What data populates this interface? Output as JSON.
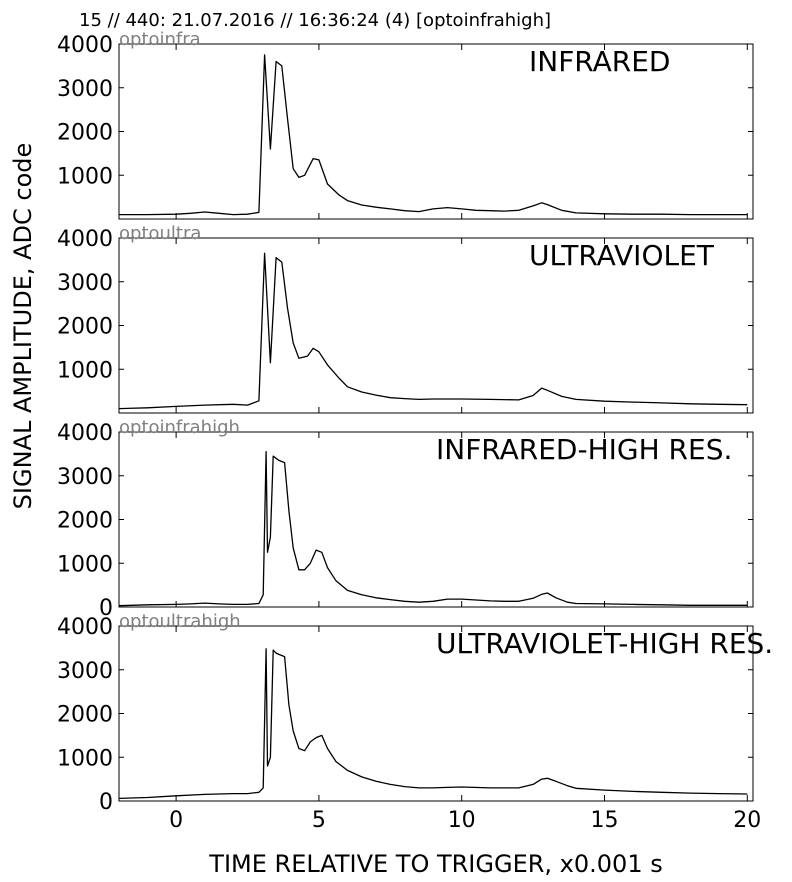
{
  "figure": {
    "title": "15 // 440:   21.07.2016 // 16:36:24 (4)  [optoinfrahigh]",
    "ylabel": "SIGNAL AMPLITUDE,  ADC code",
    "xlabel": "TIME RELATIVE TO TRIGGER,   x0.001 s"
  },
  "chart_data": [
    {
      "type": "line",
      "channel": "optoinfra",
      "label": "INFRARED",
      "xlim": [
        -2,
        20.2
      ],
      "ylim": [
        0,
        4000
      ],
      "yticks": [
        1000,
        2000,
        3000,
        4000
      ],
      "x": [
        -2,
        -1,
        0,
        0.5,
        1,
        1.5,
        2,
        2.5,
        2.9,
        3.1,
        3.3,
        3.5,
        3.7,
        3.9,
        4.1,
        4.3,
        4.5,
        4.8,
        5,
        5.3,
        5.7,
        6,
        6.5,
        7,
        7.5,
        8,
        8.5,
        9,
        9.5,
        10,
        10.5,
        11,
        11.5,
        12,
        12.5,
        12.8,
        13,
        13.5,
        14,
        15,
        16,
        17,
        18,
        19,
        20
      ],
      "values": [
        100,
        100,
        110,
        130,
        160,
        130,
        100,
        110,
        150,
        3750,
        1600,
        3600,
        3500,
        2300,
        1150,
        950,
        1000,
        1380,
        1350,
        800,
        550,
        420,
        320,
        270,
        230,
        190,
        170,
        230,
        260,
        230,
        200,
        190,
        180,
        200,
        300,
        370,
        330,
        200,
        140,
        120,
        110,
        110,
        100,
        100,
        100
      ],
      "color": "#000000"
    },
    {
      "type": "line",
      "channel": "optoultra",
      "label": "ULTRAVIOLET",
      "xlim": [
        -2,
        20.2
      ],
      "ylim": [
        0,
        4000
      ],
      "yticks": [
        1000,
        2000,
        3000,
        4000
      ],
      "x": [
        -2,
        -1,
        0,
        1,
        2,
        2.5,
        2.9,
        3.1,
        3.3,
        3.5,
        3.7,
        3.9,
        4.1,
        4.3,
        4.6,
        4.8,
        5,
        5.3,
        5.7,
        6,
        6.5,
        7,
        7.5,
        8,
        8.5,
        9,
        10,
        11,
        12,
        12.5,
        12.8,
        13,
        13.5,
        14,
        15,
        16,
        17,
        18,
        19,
        20
      ],
      "values": [
        100,
        120,
        150,
        180,
        200,
        180,
        280,
        3650,
        1150,
        3550,
        3450,
        2400,
        1600,
        1250,
        1300,
        1480,
        1400,
        1100,
        800,
        600,
        480,
        410,
        350,
        330,
        310,
        320,
        320,
        310,
        300,
        400,
        570,
        520,
        380,
        310,
        270,
        250,
        230,
        210,
        200,
        190
      ],
      "color": "#000000"
    },
    {
      "type": "line",
      "channel": "optoinfrahigh",
      "label": "INFRARED-HIGH RES.",
      "xlim": [
        -2,
        20.2
      ],
      "ylim": [
        0,
        4000
      ],
      "yticks": [
        0,
        1000,
        2000,
        3000,
        4000
      ],
      "x": [
        -2,
        -1,
        0,
        0.5,
        1,
        1.5,
        2,
        2.5,
        2.9,
        3.05,
        3.15,
        3.2,
        3.3,
        3.4,
        3.5,
        3.6,
        3.8,
        3.95,
        4.1,
        4.3,
        4.5,
        4.7,
        4.9,
        5.1,
        5.3,
        5.6,
        6,
        6.5,
        7,
        7.5,
        8,
        8.5,
        9,
        9.5,
        10,
        10.5,
        11,
        11.5,
        12,
        12.5,
        12.8,
        13,
        13.3,
        13.7,
        14,
        15,
        16,
        17,
        18,
        19,
        20
      ],
      "values": [
        30,
        50,
        60,
        70,
        90,
        70,
        60,
        60,
        80,
        280,
        3550,
        1250,
        1600,
        3450,
        3400,
        3350,
        3300,
        2200,
        1350,
        850,
        850,
        1000,
        1300,
        1250,
        900,
        600,
        380,
        280,
        210,
        170,
        130,
        110,
        130,
        180,
        180,
        160,
        140,
        130,
        130,
        200,
        290,
        320,
        210,
        110,
        80,
        70,
        60,
        50,
        40,
        40,
        40
      ],
      "color": "#000000"
    },
    {
      "type": "line",
      "channel": "optoultrahigh",
      "label": "ULTRAVIOLET-HIGH RES.",
      "xlim": [
        -2,
        20.2
      ],
      "ylim": [
        0,
        4000
      ],
      "yticks": [
        0,
        1000,
        2000,
        3000,
        4000
      ],
      "x": [
        -2,
        -1,
        0,
        1,
        2,
        2.5,
        2.9,
        3.05,
        3.15,
        3.2,
        3.3,
        3.4,
        3.5,
        3.6,
        3.8,
        3.95,
        4.1,
        4.3,
        4.5,
        4.7,
        4.9,
        5.1,
        5.3,
        5.6,
        6,
        6.5,
        7,
        7.5,
        8,
        8.5,
        9,
        9.5,
        10,
        11,
        12,
        12.5,
        12.8,
        13,
        13.3,
        13.7,
        14,
        15,
        16,
        17,
        18,
        19,
        20
      ],
      "values": [
        60,
        80,
        120,
        150,
        170,
        170,
        200,
        300,
        3480,
        800,
        1000,
        3450,
        3380,
        3350,
        3300,
        2200,
        1600,
        1200,
        1150,
        1350,
        1450,
        1500,
        1200,
        900,
        700,
        550,
        450,
        380,
        330,
        300,
        300,
        310,
        320,
        300,
        300,
        380,
        500,
        520,
        450,
        350,
        290,
        250,
        220,
        200,
        180,
        170,
        160
      ],
      "color": "#000000"
    }
  ],
  "xaxis": {
    "ticks": [
      0,
      5,
      10,
      15,
      20
    ]
  }
}
